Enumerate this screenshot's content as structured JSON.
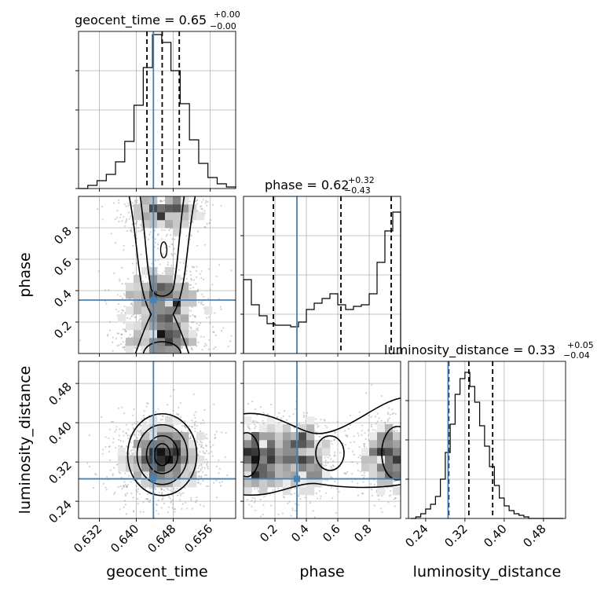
{
  "chart_data": {
    "type": "corner",
    "truth_color": "#4682b4",
    "hist_color": "#000000",
    "parameters": [
      {
        "name": "geocent_time",
        "label": "geocent_time",
        "title_main": "geocent_time = 0.65",
        "title_plus": "+0.00",
        "title_minus": "−0.00",
        "range": [
          0.6275,
          0.6615
        ],
        "ticks": [
          "0.632",
          "0.640",
          "0.648",
          "0.656"
        ],
        "truth": 0.6437,
        "quantiles": [
          0.6423,
          0.6456,
          0.6493
        ],
        "hist_bins": [
          0.6285,
          0.6305,
          0.6325,
          0.6345,
          0.6365,
          0.6385,
          0.6405,
          0.6425,
          0.6445,
          0.6465,
          0.6485,
          0.6505,
          0.6525,
          0.6545,
          0.6565,
          0.6585,
          0.6605
        ],
        "hist_values": [
          0.0,
          0.02,
          0.05,
          0.09,
          0.17,
          0.3,
          0.53,
          0.77,
          0.98,
          0.93,
          0.75,
          0.54,
          0.31,
          0.16,
          0.07,
          0.03,
          0.01
        ]
      },
      {
        "name": "phase",
        "label": "phase",
        "title_main": "phase = 0.62",
        "title_plus": "+0.32",
        "title_minus": "−0.43",
        "range": [
          0.0,
          1.0
        ],
        "ticks": [
          "0.2",
          "0.4",
          "0.6",
          "0.8"
        ],
        "truth": 0.34,
        "quantiles": [
          0.19,
          0.62,
          0.94
        ],
        "hist_bins": [
          0.025,
          0.075,
          0.125,
          0.175,
          0.225,
          0.275,
          0.325,
          0.375,
          0.425,
          0.475,
          0.525,
          0.575,
          0.625,
          0.675,
          0.725,
          0.775,
          0.825,
          0.875,
          0.925,
          0.975
        ],
        "hist_values": [
          0.47,
          0.31,
          0.24,
          0.19,
          0.18,
          0.18,
          0.17,
          0.2,
          0.28,
          0.32,
          0.35,
          0.38,
          0.31,
          0.28,
          0.3,
          0.31,
          0.38,
          0.58,
          0.78,
          0.9
        ]
      },
      {
        "name": "luminosity_distance",
        "label": "luminosity_distance",
        "title_main": "luminosity_distance = 0.33",
        "title_plus": "+0.05",
        "title_minus": "−0.04",
        "range": [
          0.205,
          0.525
        ],
        "ticks": [
          "0.24",
          "0.32",
          "0.40",
          "0.48"
        ],
        "truth": 0.2857,
        "quantiles": [
          0.287,
          0.328,
          0.3765
        ],
        "hist_bins": [
          0.215,
          0.225,
          0.235,
          0.245,
          0.255,
          0.265,
          0.275,
          0.285,
          0.295,
          0.305,
          0.315,
          0.325,
          0.335,
          0.345,
          0.355,
          0.365,
          0.375,
          0.385,
          0.395,
          0.405,
          0.415,
          0.425,
          0.435,
          0.445,
          0.455,
          0.465,
          0.475,
          0.485,
          0.495,
          0.505,
          0.515
        ],
        "hist_values": [
          0.0,
          0.01,
          0.03,
          0.06,
          0.09,
          0.14,
          0.25,
          0.42,
          0.6,
          0.79,
          0.89,
          0.93,
          0.84,
          0.74,
          0.59,
          0.46,
          0.33,
          0.21,
          0.13,
          0.08,
          0.05,
          0.03,
          0.02,
          0.01,
          0.0,
          0.0,
          0.0,
          0.0,
          0.0,
          0.0,
          0.0
        ]
      }
    ],
    "pairs": [
      {
        "x": "geocent_time",
        "y": "phase"
      },
      {
        "x": "geocent_time",
        "y": "luminosity_distance"
      },
      {
        "x": "phase",
        "y": "luminosity_distance"
      }
    ],
    "grid": true
  }
}
